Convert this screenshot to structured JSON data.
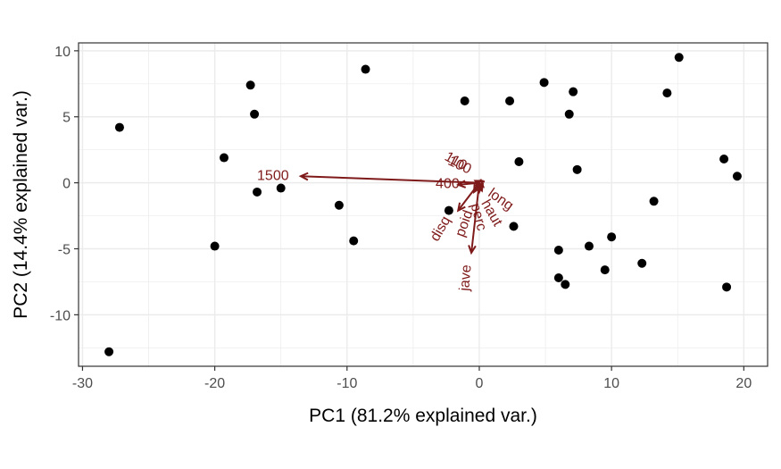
{
  "chart_data": {
    "type": "scatter",
    "title": "",
    "xlabel": "PC1 (81.2% explained var.)",
    "ylabel": "PC2 (14.4% explained var.)",
    "xlim": [
      -30.3,
      21.8
    ],
    "ylim": [
      -13.9,
      10.6
    ],
    "x_ticks": [
      -30,
      -20,
      -10,
      0,
      10,
      20
    ],
    "x_tick_labels": [
      "-30",
      "-20",
      "-10",
      "0",
      "10",
      "20"
    ],
    "y_ticks": [
      -10,
      -5,
      0,
      5,
      10
    ],
    "y_tick_labels": [
      "-10",
      "-5",
      "0",
      "5",
      "10"
    ],
    "grid": true,
    "legend": "none",
    "colors": {
      "points": "#000000",
      "arrows": "#7f1a1a",
      "grid": "#ebebeb",
      "border": "#333333"
    },
    "points": [
      {
        "x": -27.2,
        "y": 4.2
      },
      {
        "x": -28.0,
        "y": -12.8
      },
      {
        "x": -17.3,
        "y": 7.4
      },
      {
        "x": -17.0,
        "y": 5.2
      },
      {
        "x": -19.3,
        "y": 1.9
      },
      {
        "x": -16.8,
        "y": -0.7
      },
      {
        "x": -15.0,
        "y": -0.4
      },
      {
        "x": -20.0,
        "y": -4.8
      },
      {
        "x": -8.6,
        "y": 8.6
      },
      {
        "x": -10.6,
        "y": -1.7
      },
      {
        "x": -9.5,
        "y": -4.4
      },
      {
        "x": -1.1,
        "y": 6.2
      },
      {
        "x": 2.3,
        "y": 6.2
      },
      {
        "x": -2.3,
        "y": -2.1
      },
      {
        "x": 2.6,
        "y": -3.3
      },
      {
        "x": 3.0,
        "y": 1.6
      },
      {
        "x": 4.9,
        "y": 7.6
      },
      {
        "x": 7.1,
        "y": 6.9
      },
      {
        "x": 6.8,
        "y": 5.2
      },
      {
        "x": 7.4,
        "y": 1.0
      },
      {
        "x": 6.0,
        "y": -5.1
      },
      {
        "x": 6.0,
        "y": -7.2
      },
      {
        "x": 6.5,
        "y": -7.7
      },
      {
        "x": 8.3,
        "y": -4.8
      },
      {
        "x": 10.0,
        "y": -4.1
      },
      {
        "x": 9.5,
        "y": -6.6
      },
      {
        "x": 12.3,
        "y": -6.1
      },
      {
        "x": 13.2,
        "y": -1.4
      },
      {
        "x": 14.2,
        "y": 6.8
      },
      {
        "x": 15.1,
        "y": 9.5
      },
      {
        "x": 18.5,
        "y": 1.8
      },
      {
        "x": 19.5,
        "y": 0.5
      },
      {
        "x": 18.7,
        "y": -7.9
      }
    ],
    "arrows": [
      {
        "label": "1500",
        "x": -13.5,
        "y": 0.5,
        "label_x": -15.6,
        "label_y": 0.5,
        "rotate": 0
      },
      {
        "label": "400",
        "x": -1.6,
        "y": -0.15,
        "label_x": -2.4,
        "label_y": -0.1,
        "rotate": 0
      },
      {
        "label": "100",
        "x": -0.2,
        "y": 0.1,
        "label_x": -1.5,
        "label_y": 1.3,
        "rotate": 25
      },
      {
        "label": "110",
        "x": -0.3,
        "y": 0.15,
        "label_x": -1.8,
        "label_y": 1.6,
        "rotate": 30
      },
      {
        "label": "long",
        "x": 0.3,
        "y": -0.3,
        "label_x": 1.6,
        "label_y": -1.3,
        "rotate": 35
      },
      {
        "label": "haut",
        "x": 0.2,
        "y": -0.6,
        "label_x": 0.9,
        "label_y": -2.3,
        "rotate": 60
      },
      {
        "label": "perc",
        "x": 0.0,
        "y": -0.7,
        "label_x": -0.1,
        "label_y": -2.6,
        "rotate": 75
      },
      {
        "label": "poid",
        "x": -0.4,
        "y": -0.7,
        "label_x": -1.1,
        "label_y": -3.1,
        "rotate": -70
      },
      {
        "label": "disq",
        "x": -1.6,
        "y": -2.1,
        "label_x": -2.9,
        "label_y": -3.5,
        "rotate": -60
      },
      {
        "label": "jave",
        "x": -0.6,
        "y": -5.3,
        "label_x": -1.0,
        "label_y": -7.2,
        "rotate": -85
      }
    ]
  }
}
